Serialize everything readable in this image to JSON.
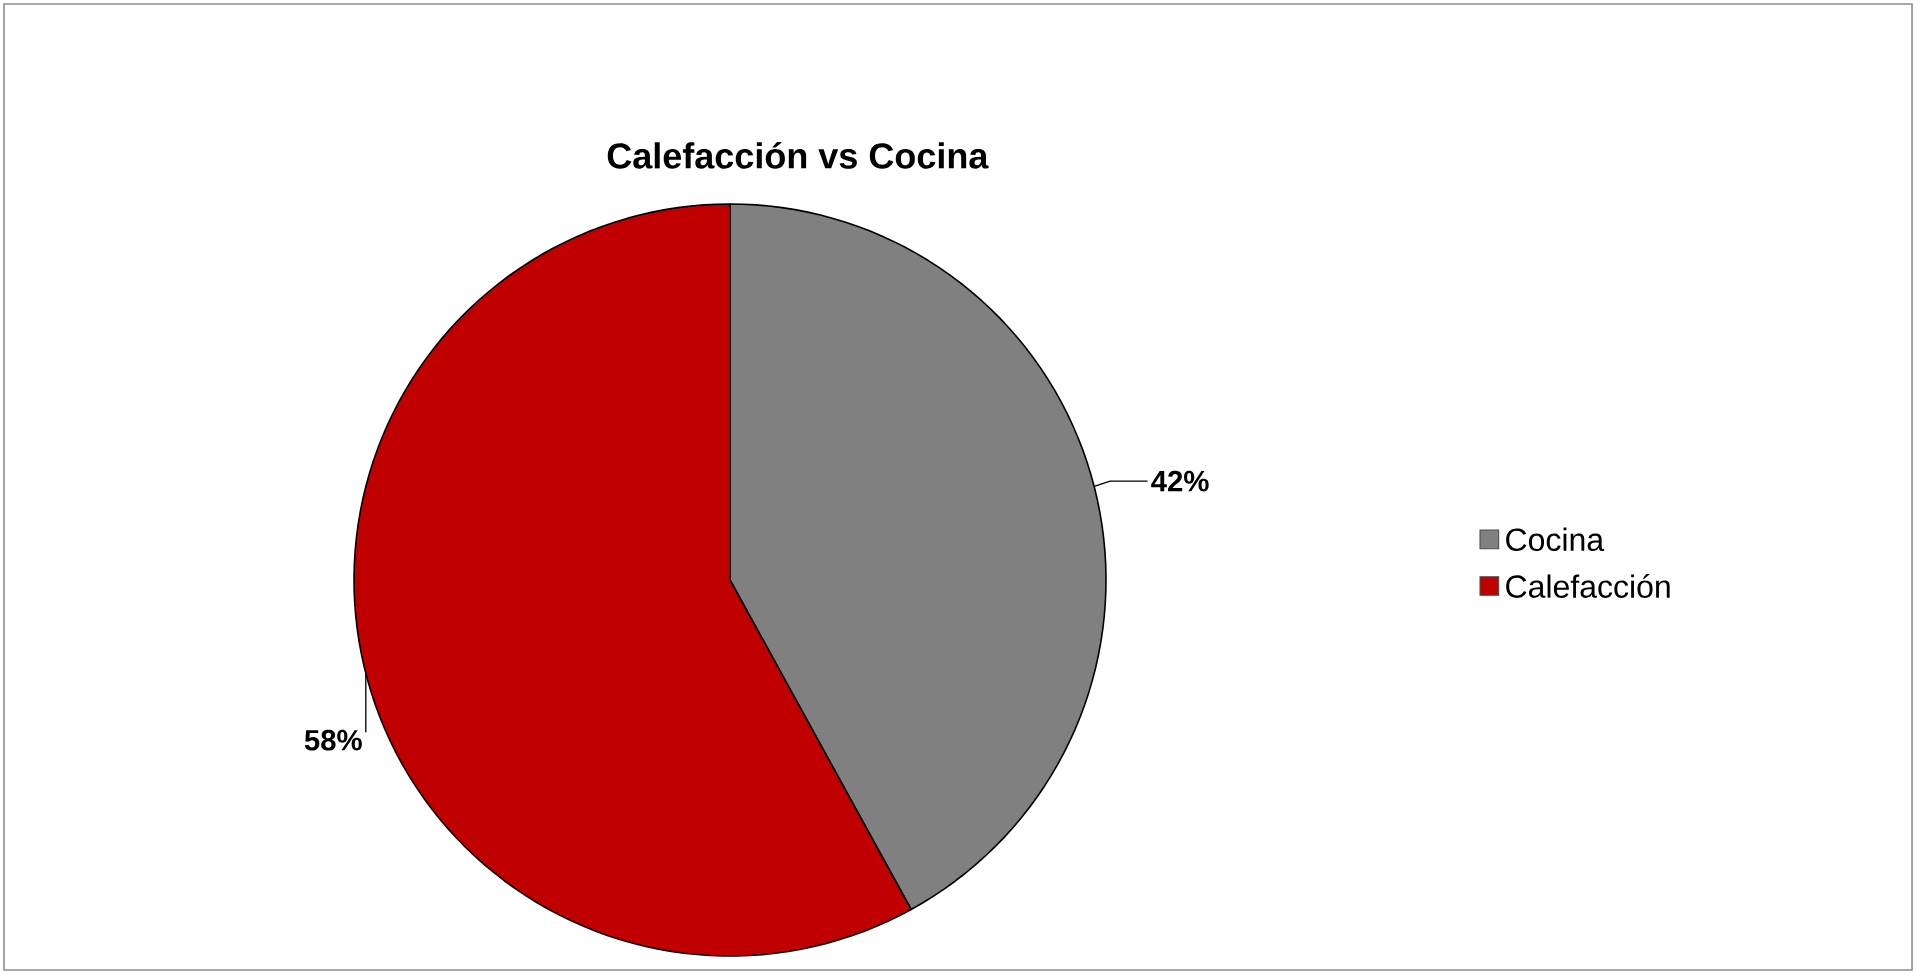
{
  "chart_data": {
    "type": "pie",
    "title": "Calefacción vs Cocina",
    "categories": [
      "Cocina",
      "Calefacción"
    ],
    "values": [
      42,
      58
    ],
    "colors": [
      "#808080",
      "#c00000"
    ],
    "value_labels": [
      "42%",
      "58%"
    ],
    "legend": "right"
  }
}
